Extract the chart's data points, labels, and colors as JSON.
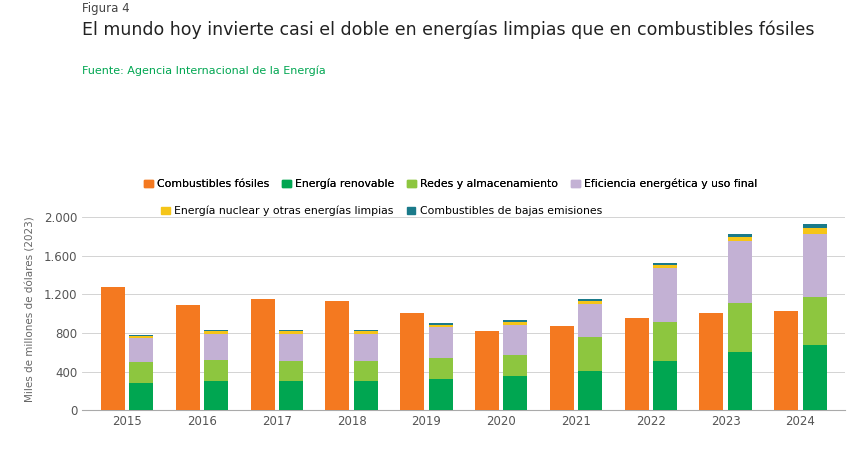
{
  "figura": "Figura 4",
  "title": "El mundo hoy invierte casi el doble en energías limpias que en combustibles fósiles",
  "source": "Fuente: Agencia Internacional de la Energía",
  "ylabel": "Miles de millones de dólares (2023)",
  "years": [
    2015,
    2016,
    2017,
    2018,
    2019,
    2020,
    2021,
    2022,
    2023,
    2024
  ],
  "series": {
    "Combustibles fósiles": {
      "color": "#F47920",
      "values": [
        1280,
        1090,
        1150,
        1130,
        1010,
        820,
        870,
        960,
        1010,
        1030
      ]
    },
    "Energía renovable": {
      "color": "#00A651",
      "values": [
        285,
        305,
        300,
        305,
        325,
        360,
        410,
        510,
        600,
        680
      ]
    },
    "Redes y almacenamiento": {
      "color": "#8DC63F",
      "values": [
        215,
        220,
        215,
        210,
        215,
        215,
        350,
        400,
        510,
        490
      ]
    },
    "Eficiencia energética y uso final": {
      "color": "#C3B1D4",
      "values": [
        250,
        270,
        280,
        280,
        320,
        310,
        340,
        560,
        640,
        660
      ]
    },
    "Energía nuclear y otras energías limpias": {
      "color": "#F5C518",
      "values": [
        25,
        25,
        25,
        25,
        28,
        28,
        30,
        35,
        45,
        55
      ]
    },
    "Combustibles de bajas emisiones": {
      "color": "#1A7A8A",
      "values": [
        10,
        12,
        15,
        15,
        18,
        22,
        25,
        25,
        30,
        45
      ]
    }
  },
  "ylim": [
    0,
    2100
  ],
  "yticks": [
    0,
    400,
    800,
    1200,
    1600,
    2000
  ],
  "ytick_labels": [
    "0",
    "400",
    "800",
    "1.200",
    "1.600",
    "2.000"
  ],
  "background_color": "#ffffff",
  "title_color": "#222222",
  "figura_color": "#444444",
  "source_color": "#00A651",
  "bar_width": 0.32,
  "bar_gap": 0.06
}
